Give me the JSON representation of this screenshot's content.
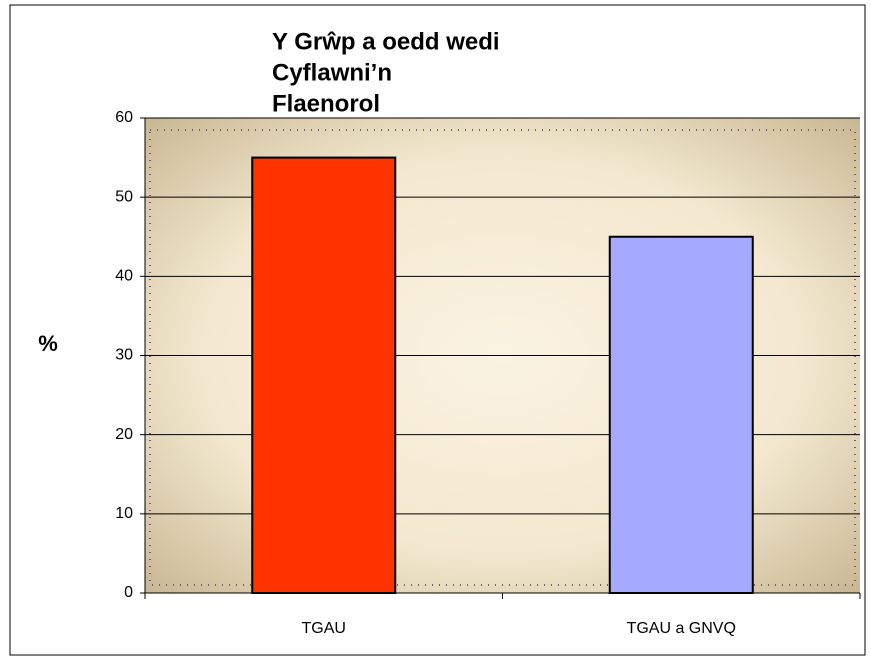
{
  "chart_data": {
    "type": "bar",
    "title": [
      "Y Grŵp a oedd wedi",
      "Cyflawni’n",
      "Flaenorol"
    ],
    "y_label": "%",
    "categories": [
      "TGAU",
      "TGAU a GNVQ"
    ],
    "values": [
      55,
      45
    ],
    "colors": [
      "#ff3300",
      "#a6aaff"
    ],
    "ylim": [
      0,
      60
    ],
    "yticks": [
      0,
      10,
      20,
      30,
      40,
      50,
      60
    ],
    "grid": true
  }
}
